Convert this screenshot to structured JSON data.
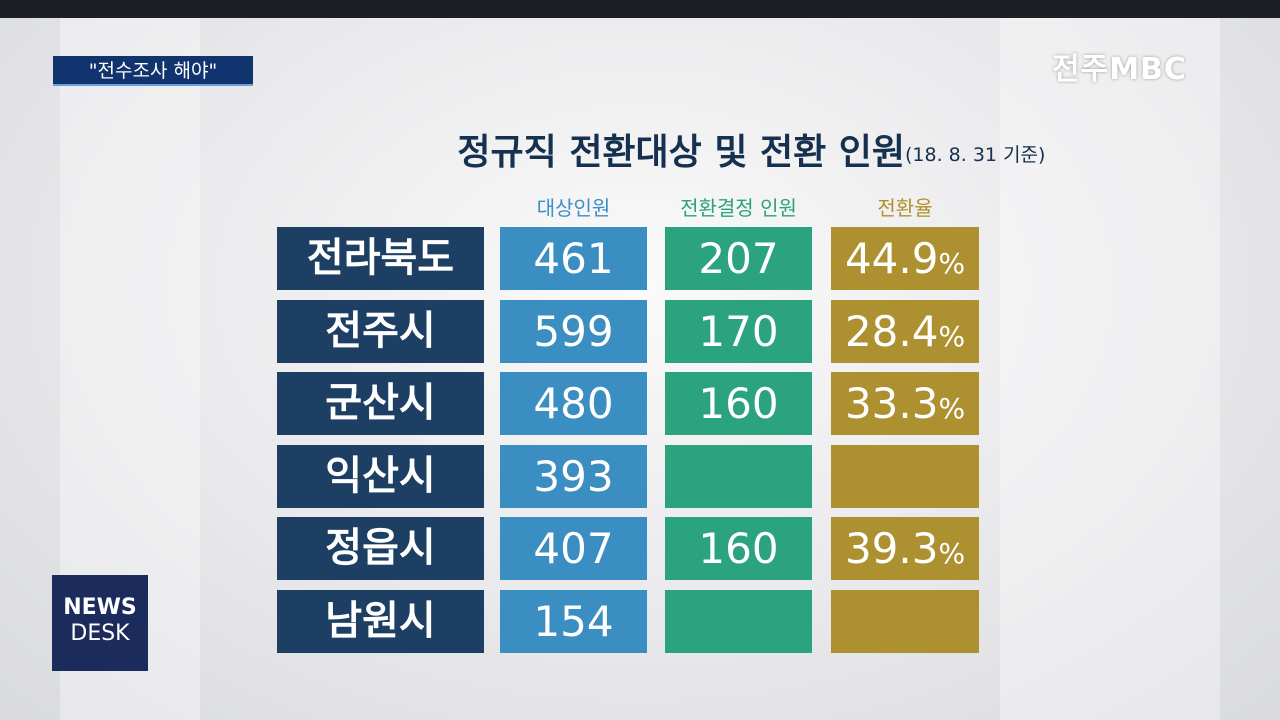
{
  "caption": "\"전수조사 해야\"",
  "logo": "전주MBC",
  "badge": {
    "line1": "NEWS",
    "line2": "DESK"
  },
  "title": "정규직 전환대상 및 전환 인원",
  "subtitle": "(18. 8. 31 기준)",
  "table": {
    "headers": [
      "대상인원",
      "전환결정 인원",
      "전환율"
    ],
    "rows": [
      [
        "전라북도",
        "461",
        "207",
        "44.9%"
      ],
      [
        "전주시",
        "599",
        "170",
        "28.4%"
      ],
      [
        "군산시",
        "480",
        "160",
        "33.3%"
      ],
      [
        "익산시",
        "393",
        null,
        null
      ],
      [
        "정읍시",
        "407",
        "160",
        "39.3%"
      ],
      [
        "남원시",
        "154",
        null,
        null
      ]
    ]
  }
}
